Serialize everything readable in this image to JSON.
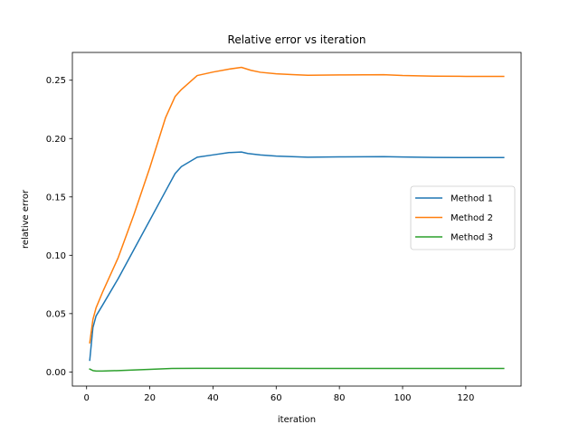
{
  "chart_data": {
    "type": "line",
    "title": "Relative error vs iteration",
    "xlabel": "iteration",
    "ylabel": "relative error",
    "xlim": [
      -4.5,
      137.5
    ],
    "ylim": [
      -0.0121,
      0.2738
    ],
    "x_ticks": [
      0,
      20,
      40,
      60,
      80,
      100,
      120
    ],
    "x_tick_labels": [
      "0",
      "20",
      "40",
      "60",
      "80",
      "100",
      "120"
    ],
    "y_ticks": [
      0.0,
      0.05,
      0.1,
      0.15,
      0.2,
      0.25
    ],
    "y_tick_labels": [
      "0.00",
      "0.05",
      "0.10",
      "0.15",
      "0.20",
      "0.25"
    ],
    "grid": false,
    "legend_position": "center-right",
    "series": [
      {
        "name": "Method 1",
        "color": "#1f77b4",
        "x": [
          1,
          2,
          3,
          5,
          10,
          15,
          20,
          25,
          28,
          30,
          35,
          40,
          45,
          49,
          51,
          55,
          60,
          65,
          70,
          80,
          94,
          100,
          110,
          120,
          132
        ],
        "y": [
          0.01,
          0.038,
          0.048,
          0.057,
          0.08,
          0.105,
          0.13,
          0.155,
          0.17,
          0.176,
          0.184,
          0.186,
          0.188,
          0.1885,
          0.1872,
          0.186,
          0.185,
          0.1845,
          0.184,
          0.1843,
          0.1845,
          0.1842,
          0.1838,
          0.1837,
          0.1837
        ]
      },
      {
        "name": "Method 2",
        "color": "#ff7f0e",
        "x": [
          1,
          2,
          3,
          5,
          10,
          15,
          20,
          25,
          28,
          30,
          35,
          40,
          45,
          49,
          52,
          55,
          60,
          65,
          70,
          80,
          94,
          100,
          110,
          120,
          132
        ],
        "y": [
          0.025,
          0.045,
          0.055,
          0.068,
          0.098,
          0.135,
          0.175,
          0.218,
          0.236,
          0.242,
          0.254,
          0.257,
          0.2595,
          0.261,
          0.2585,
          0.2568,
          0.2555,
          0.2548,
          0.2542,
          0.2545,
          0.2547,
          0.254,
          0.2535,
          0.2533,
          0.2533
        ]
      },
      {
        "name": "Method 3",
        "color": "#2ca02c",
        "x": [
          1,
          2,
          3,
          5,
          10,
          20,
          27,
          35,
          50,
          70,
          100,
          132
        ],
        "y": [
          0.0025,
          0.0012,
          0.0008,
          0.0008,
          0.0012,
          0.0022,
          0.003,
          0.0031,
          0.0031,
          0.003,
          0.003,
          0.003
        ]
      }
    ]
  }
}
